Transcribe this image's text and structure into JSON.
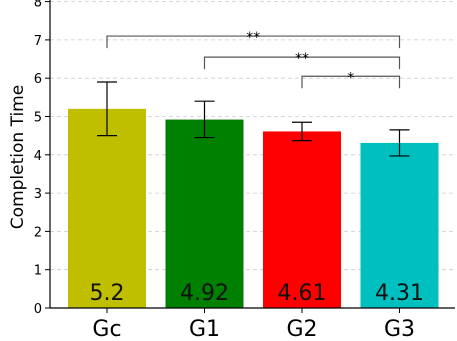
{
  "chart_data": {
    "type": "bar",
    "ylabel": "Completion Time",
    "categories": [
      "Gc",
      "G1",
      "G2",
      "G3"
    ],
    "values": [
      5.2,
      4.92,
      4.61,
      4.31
    ],
    "value_labels": [
      "5.2",
      "4.92",
      "4.61",
      "4.31"
    ],
    "error_low": [
      4.5,
      4.45,
      4.37,
      3.97
    ],
    "error_high": [
      5.9,
      5.4,
      4.85,
      4.65
    ],
    "colors": [
      "#bfbf00",
      "#008000",
      "#ff0000",
      "#00bfbf"
    ],
    "ylim": [
      0,
      8
    ],
    "yticks": [
      "0",
      "1",
      "2",
      "3",
      "4",
      "5",
      "6",
      "7",
      "8"
    ],
    "grid": true,
    "significance": [
      {
        "from": 0,
        "to": 3,
        "level": 7.1,
        "label": "**"
      },
      {
        "from": 1,
        "to": 3,
        "level": 6.55,
        "label": "**"
      },
      {
        "from": 2,
        "to": 3,
        "level": 6.05,
        "label": "*"
      }
    ]
  }
}
